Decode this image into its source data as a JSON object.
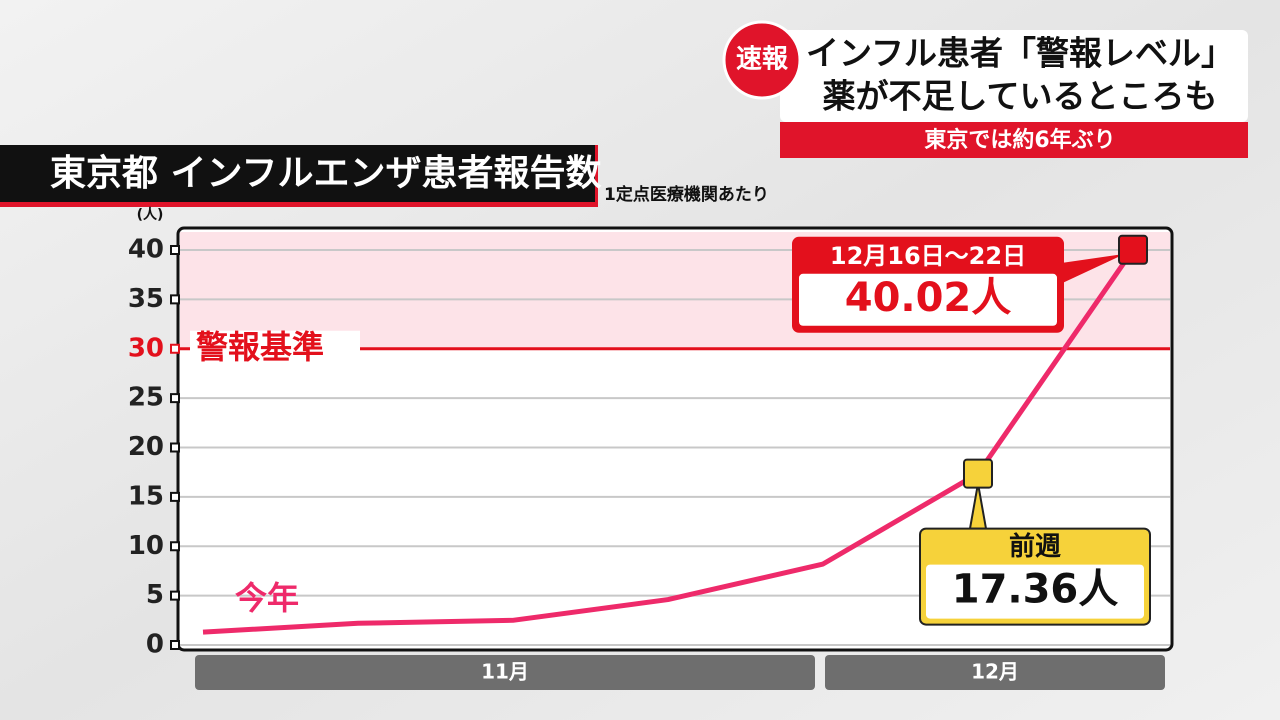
{
  "header": {
    "badge": "速報",
    "headline_1": "インフル患者「警報レベル」",
    "headline_2": "薬が不足しているところも",
    "subheadline": "東京では約6年ぶり"
  },
  "chart_data": {
    "type": "line",
    "title": "東京都 インフルエンザ患者報告数",
    "subtitle": "1定点医療機関あたり",
    "y_unit": "(人)",
    "categories": [
      null,
      null,
      null,
      null,
      null,
      null,
      null
    ],
    "month_labels": [
      "11月",
      "12月"
    ],
    "series": [
      {
        "name": "今年",
        "color": "#ee2a6a",
        "values": [
          1.3,
          2.2,
          2.5,
          4.6,
          8.2,
          17.36,
          40.02
        ],
        "value_labels": [
          null,
          null,
          null,
          null,
          null,
          "17.36人",
          "40.02人"
        ],
        "point_notes": [
          null,
          null,
          null,
          null,
          null,
          "前週",
          "12月16日〜22日"
        ],
        "point_colors": [
          null,
          null,
          null,
          null,
          null,
          "#f6d23a",
          "#e3101c"
        ]
      }
    ],
    "threshold": {
      "value": 30,
      "label": "警報基準",
      "color": "#e3101c"
    },
    "ylim": [
      0,
      40
    ],
    "yticks": [
      0,
      5,
      10,
      15,
      20,
      25,
      30,
      35,
      40
    ],
    "grid": true
  }
}
